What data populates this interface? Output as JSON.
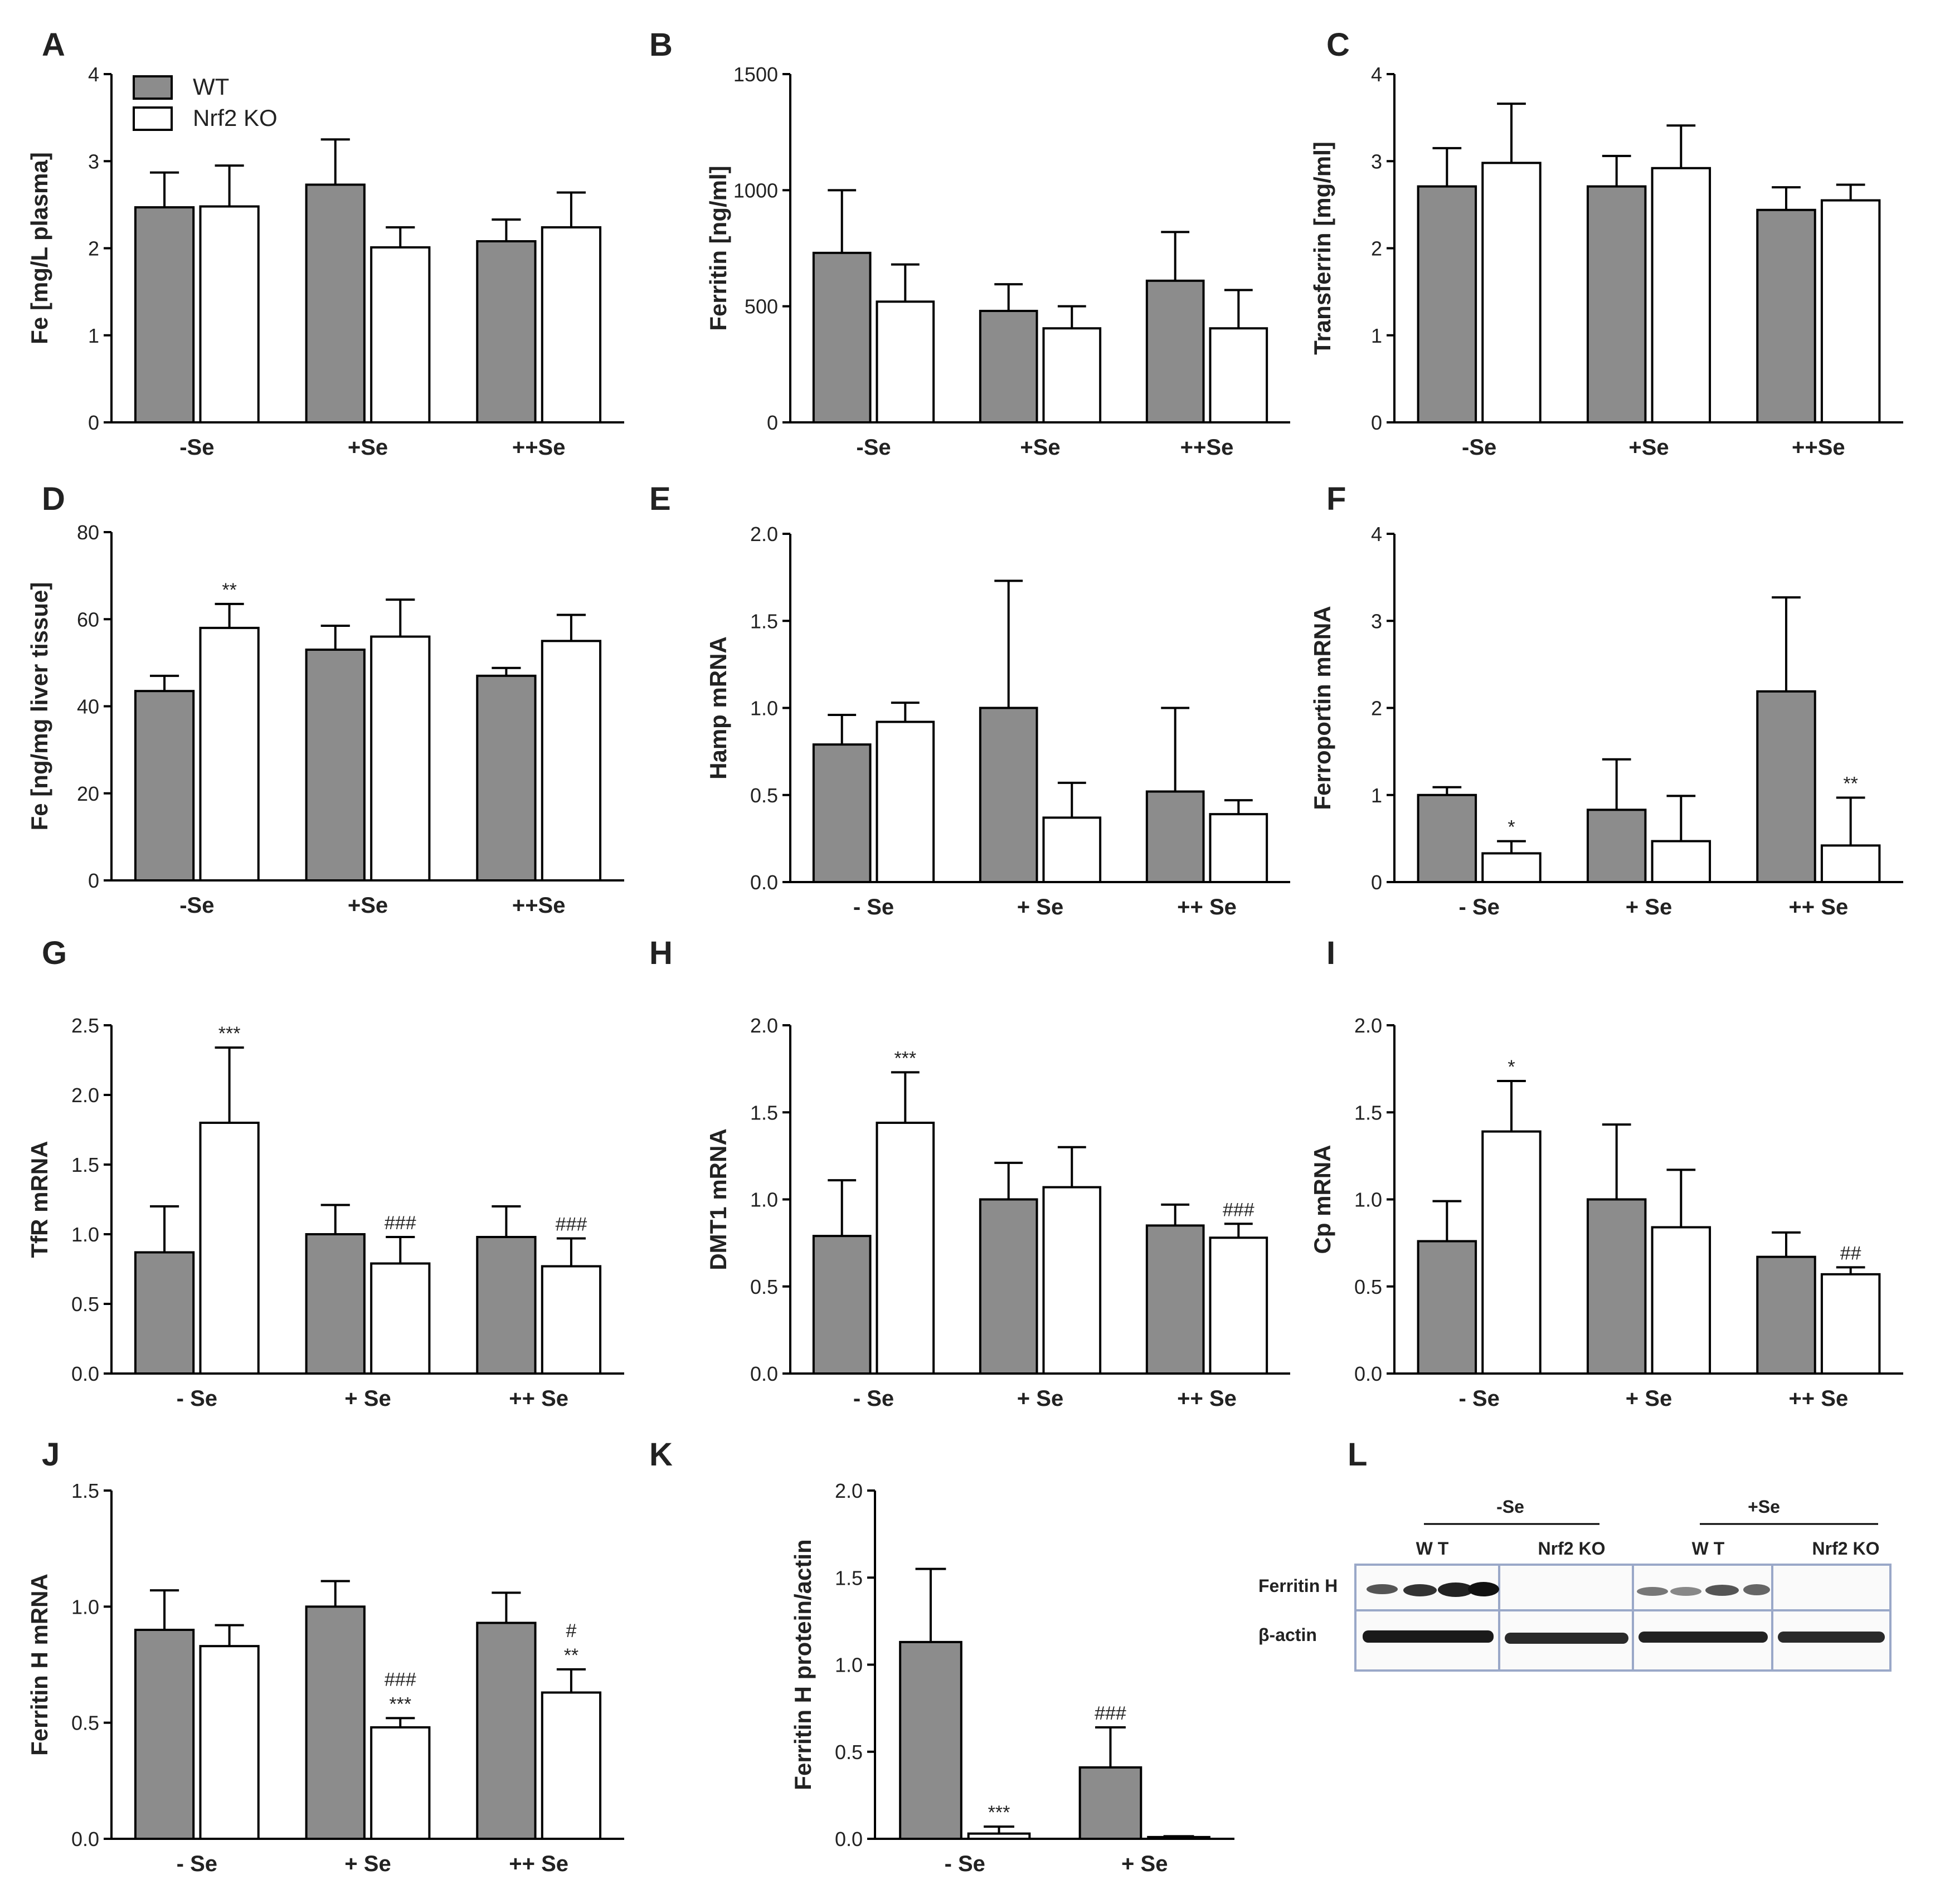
{
  "figure": {
    "colors": {
      "wt_fill": "#8c8c8c",
      "ko_fill": "#ffffff",
      "stroke": "#000000",
      "blot_frame": "#9aa8c8"
    },
    "legend": {
      "wt": "WT",
      "ko": "Nrf2 KO"
    }
  },
  "chart_data": [
    {
      "panel": "A",
      "type": "bar",
      "ylabel": "Fe [mg/L plasma]",
      "ylim": [
        0,
        4
      ],
      "yticks": [
        "0",
        "1",
        "2",
        "3",
        "4"
      ],
      "categories": [
        "-Se",
        "+Se",
        "++Se"
      ],
      "series": [
        {
          "name": "WT",
          "values": [
            2.47,
            2.73,
            2.08
          ],
          "errors": [
            0.4,
            0.52,
            0.25
          ],
          "sig": [
            "",
            "",
            ""
          ]
        },
        {
          "name": "Nrf2 KO",
          "values": [
            2.48,
            2.01,
            2.24
          ],
          "errors": [
            0.47,
            0.23,
            0.4
          ],
          "sig": [
            "",
            "",
            ""
          ]
        }
      ]
    },
    {
      "panel": "B",
      "type": "bar",
      "ylabel": "Ferritin [ng/ml]",
      "ylim": [
        0,
        1500
      ],
      "yticks": [
        "0",
        "500",
        "1000",
        "1500"
      ],
      "categories": [
        "-Se",
        "+Se",
        "++Se"
      ],
      "series": [
        {
          "name": "WT",
          "values": [
            730,
            480,
            610
          ],
          "errors": [
            270,
            115,
            210
          ],
          "sig": [
            "",
            "",
            ""
          ]
        },
        {
          "name": "Nrf2 KO",
          "values": [
            520,
            405,
            405
          ],
          "errors": [
            160,
            95,
            165
          ],
          "sig": [
            "",
            "",
            ""
          ]
        }
      ]
    },
    {
      "panel": "C",
      "type": "bar",
      "ylabel": "Transferrin [mg/ml]",
      "ylim": [
        0,
        4
      ],
      "yticks": [
        "0",
        "1",
        "2",
        "3",
        "4"
      ],
      "categories": [
        "-Se",
        "+Se",
        "++Se"
      ],
      "series": [
        {
          "name": "WT",
          "values": [
            2.71,
            2.71,
            2.44
          ],
          "errors": [
            0.44,
            0.35,
            0.26
          ],
          "sig": [
            "",
            "",
            ""
          ]
        },
        {
          "name": "Nrf2 KO",
          "values": [
            2.98,
            2.92,
            2.55
          ],
          "errors": [
            0.68,
            0.49,
            0.18
          ],
          "sig": [
            "",
            "",
            ""
          ]
        }
      ]
    },
    {
      "panel": "D",
      "type": "bar",
      "ylabel": "Fe [ng/mg liver tissue]",
      "ylim": [
        0,
        80
      ],
      "yticks": [
        "0",
        "20",
        "40",
        "60",
        "80"
      ],
      "categories": [
        "-Se",
        "+Se",
        "++Se"
      ],
      "series": [
        {
          "name": "WT",
          "values": [
            43.5,
            53.0,
            47.0
          ],
          "errors": [
            3.5,
            5.5,
            1.8
          ],
          "sig": [
            "",
            "",
            ""
          ]
        },
        {
          "name": "Nrf2 KO",
          "values": [
            58.0,
            56.0,
            55.0
          ],
          "errors": [
            5.5,
            8.5,
            6.0
          ],
          "sig": [
            "**",
            "",
            ""
          ]
        }
      ]
    },
    {
      "panel": "E",
      "type": "bar",
      "ylabel": "Hamp mRNA",
      "ylim": [
        0,
        2
      ],
      "yticks": [
        "0.0",
        "0.5",
        "1.0",
        "1.5",
        "2.0"
      ],
      "categories": [
        "- Se",
        "+ Se",
        "++ Se"
      ],
      "series": [
        {
          "name": "WT",
          "values": [
            0.79,
            1.0,
            0.52
          ],
          "errors": [
            0.17,
            0.73,
            0.48
          ],
          "sig": [
            "",
            "",
            ""
          ]
        },
        {
          "name": "Nrf2 KO",
          "values": [
            0.92,
            0.37,
            0.39
          ],
          "errors": [
            0.11,
            0.2,
            0.08
          ],
          "sig": [
            "",
            "",
            ""
          ]
        }
      ]
    },
    {
      "panel": "F",
      "type": "bar",
      "ylabel": "Ferroportin mRNA",
      "ylim": [
        0,
        4
      ],
      "yticks": [
        "0",
        "1",
        "2",
        "3",
        "4"
      ],
      "categories": [
        "- Se",
        "+ Se",
        "++ Se"
      ],
      "series": [
        {
          "name": "WT",
          "values": [
            1.0,
            0.83,
            2.19
          ],
          "errors": [
            0.09,
            0.58,
            1.08
          ],
          "sig": [
            "",
            "",
            ""
          ]
        },
        {
          "name": "Nrf2 KO",
          "values": [
            0.33,
            0.47,
            0.42
          ],
          "errors": [
            0.14,
            0.52,
            0.55
          ],
          "sig": [
            "*",
            "",
            "**"
          ]
        }
      ]
    },
    {
      "panel": "G",
      "type": "bar",
      "ylabel": "TfR mRNA",
      "ylim": [
        0,
        2.5
      ],
      "yticks": [
        "0.0",
        "0.5",
        "1.0",
        "1.5",
        "2.0",
        "2.5"
      ],
      "categories": [
        "- Se",
        "+ Se",
        "++ Se"
      ],
      "series": [
        {
          "name": "WT",
          "values": [
            0.87,
            1.0,
            0.98
          ],
          "errors": [
            0.33,
            0.21,
            0.22
          ],
          "sig": [
            "",
            "",
            ""
          ]
        },
        {
          "name": "Nrf2 KO",
          "values": [
            1.8,
            0.79,
            0.77
          ],
          "errors": [
            0.54,
            0.19,
            0.2
          ],
          "sig": [
            "***",
            "###",
            "###"
          ]
        }
      ]
    },
    {
      "panel": "H",
      "type": "bar",
      "ylabel": "DMT1 mRNA",
      "ylim": [
        0,
        2
      ],
      "yticks": [
        "0.0",
        "0.5",
        "1.0",
        "1.5",
        "2.0"
      ],
      "categories": [
        "- Se",
        "+ Se",
        "++ Se"
      ],
      "series": [
        {
          "name": "WT",
          "values": [
            0.79,
            1.0,
            0.85
          ],
          "errors": [
            0.32,
            0.21,
            0.12
          ],
          "sig": [
            "",
            "",
            ""
          ]
        },
        {
          "name": "Nrf2 KO",
          "values": [
            1.44,
            1.07,
            0.78
          ],
          "errors": [
            0.29,
            0.23,
            0.08
          ],
          "sig": [
            "***",
            "",
            "###"
          ]
        }
      ]
    },
    {
      "panel": "I",
      "type": "bar",
      "ylabel": "Cp mRNA",
      "ylim": [
        0,
        2
      ],
      "yticks": [
        "0.0",
        "0.5",
        "1.0",
        "1.5",
        "2.0"
      ],
      "categories": [
        "- Se",
        "+ Se",
        "++ Se"
      ],
      "series": [
        {
          "name": "WT",
          "values": [
            0.76,
            1.0,
            0.67
          ],
          "errors": [
            0.23,
            0.43,
            0.14
          ],
          "sig": [
            "",
            "",
            ""
          ]
        },
        {
          "name": "Nrf2 KO",
          "values": [
            1.39,
            0.84,
            0.57
          ],
          "errors": [
            0.29,
            0.33,
            0.04
          ],
          "sig": [
            "*",
            "",
            "##"
          ]
        }
      ]
    },
    {
      "panel": "J",
      "type": "bar",
      "ylabel": "Ferritin H mRNA",
      "ylim": [
        0,
        1.5
      ],
      "yticks": [
        "0.0",
        "0.5",
        "1.0",
        "1.5"
      ],
      "categories": [
        "- Se",
        "+ Se",
        "++ Se"
      ],
      "series": [
        {
          "name": "WT",
          "values": [
            0.9,
            1.0,
            0.93
          ],
          "errors": [
            0.17,
            0.11,
            0.13
          ],
          "sig": [
            "",
            "",
            ""
          ]
        },
        {
          "name": "Nrf2 KO",
          "values": [
            0.83,
            0.48,
            0.63
          ],
          "errors": [
            0.09,
            0.04,
            0.1
          ],
          "sig": [
            "",
            "###\n***",
            "#\n**"
          ]
        }
      ]
    },
    {
      "panel": "K",
      "type": "bar",
      "ylabel": "Ferritin H protein/actin",
      "ylim": [
        0,
        2
      ],
      "yticks": [
        "0.0",
        "0.5",
        "1.0",
        "1.5",
        "2.0"
      ],
      "categories": [
        "- Se",
        "+ Se"
      ],
      "series": [
        {
          "name": "WT",
          "values": [
            1.13,
            0.41
          ],
          "errors": [
            0.42,
            0.23
          ],
          "sig": [
            "",
            "###"
          ]
        },
        {
          "name": "Nrf2 KO",
          "values": [
            0.03,
            0.01
          ],
          "errors": [
            0.04,
            0.005
          ],
          "sig": [
            "***",
            ""
          ]
        }
      ]
    }
  ],
  "blot": {
    "panel": "L",
    "groups": [
      "-Se",
      "+Se"
    ],
    "subgroups": [
      "W T",
      "Nrf2 KO",
      "W T",
      "Nrf2 KO"
    ],
    "rows": [
      "Ferritin H",
      "β-actin"
    ]
  }
}
